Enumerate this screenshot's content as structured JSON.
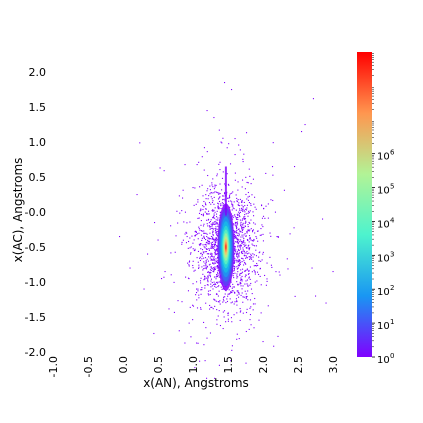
{
  "chart_data": {
    "type": "heatmap",
    "title": "",
    "xlabel": "x(AN), Angstroms",
    "ylabel": "x(AC), Angstroms",
    "xlim": [
      -1.0,
      3.1
    ],
    "ylim": [
      -2.0,
      2.2
    ],
    "xticks": [
      -1.0,
      -0.5,
      0.0,
      0.5,
      1.0,
      1.5,
      2.0,
      2.5,
      3.0
    ],
    "xtick_labels": [
      "-1.0",
      "-0.5",
      "0.0",
      "0.5",
      "1.0",
      "1.5",
      "2.0",
      "2.5",
      "3.0"
    ],
    "yticks": [
      -2.0,
      -1.5,
      -1.0,
      -0.5,
      0.0,
      0.5,
      1.0,
      1.5,
      2.0
    ],
    "ytick_labels": [
      "-2.0",
      "-1.5",
      "-1.0",
      "-0.5",
      "-0.0",
      "0.5",
      "1.0",
      "1.5",
      "2.0"
    ],
    "grid": false,
    "density_center": {
      "x": 1.47,
      "y": -0.5
    },
    "density_spread": {
      "x": 0.1,
      "y": 0.32
    },
    "colorbar": {
      "scale": "log",
      "range": [
        1,
        1000000000
      ],
      "colormap": "rainbow",
      "ticks": [
        1,
        10,
        100,
        1000,
        10000,
        100000,
        1000000
      ],
      "tick_labels": [
        "10",
        "10",
        "10",
        "10",
        "10",
        "10",
        "10"
      ],
      "tick_exponents": [
        "0",
        "1",
        "2",
        "3",
        "4",
        "5",
        "6"
      ],
      "colors": [
        "#8000ff",
        "#1996f3",
        "#4df3ce",
        "#b2f396",
        "#ff964f",
        "#ff0000"
      ]
    }
  }
}
